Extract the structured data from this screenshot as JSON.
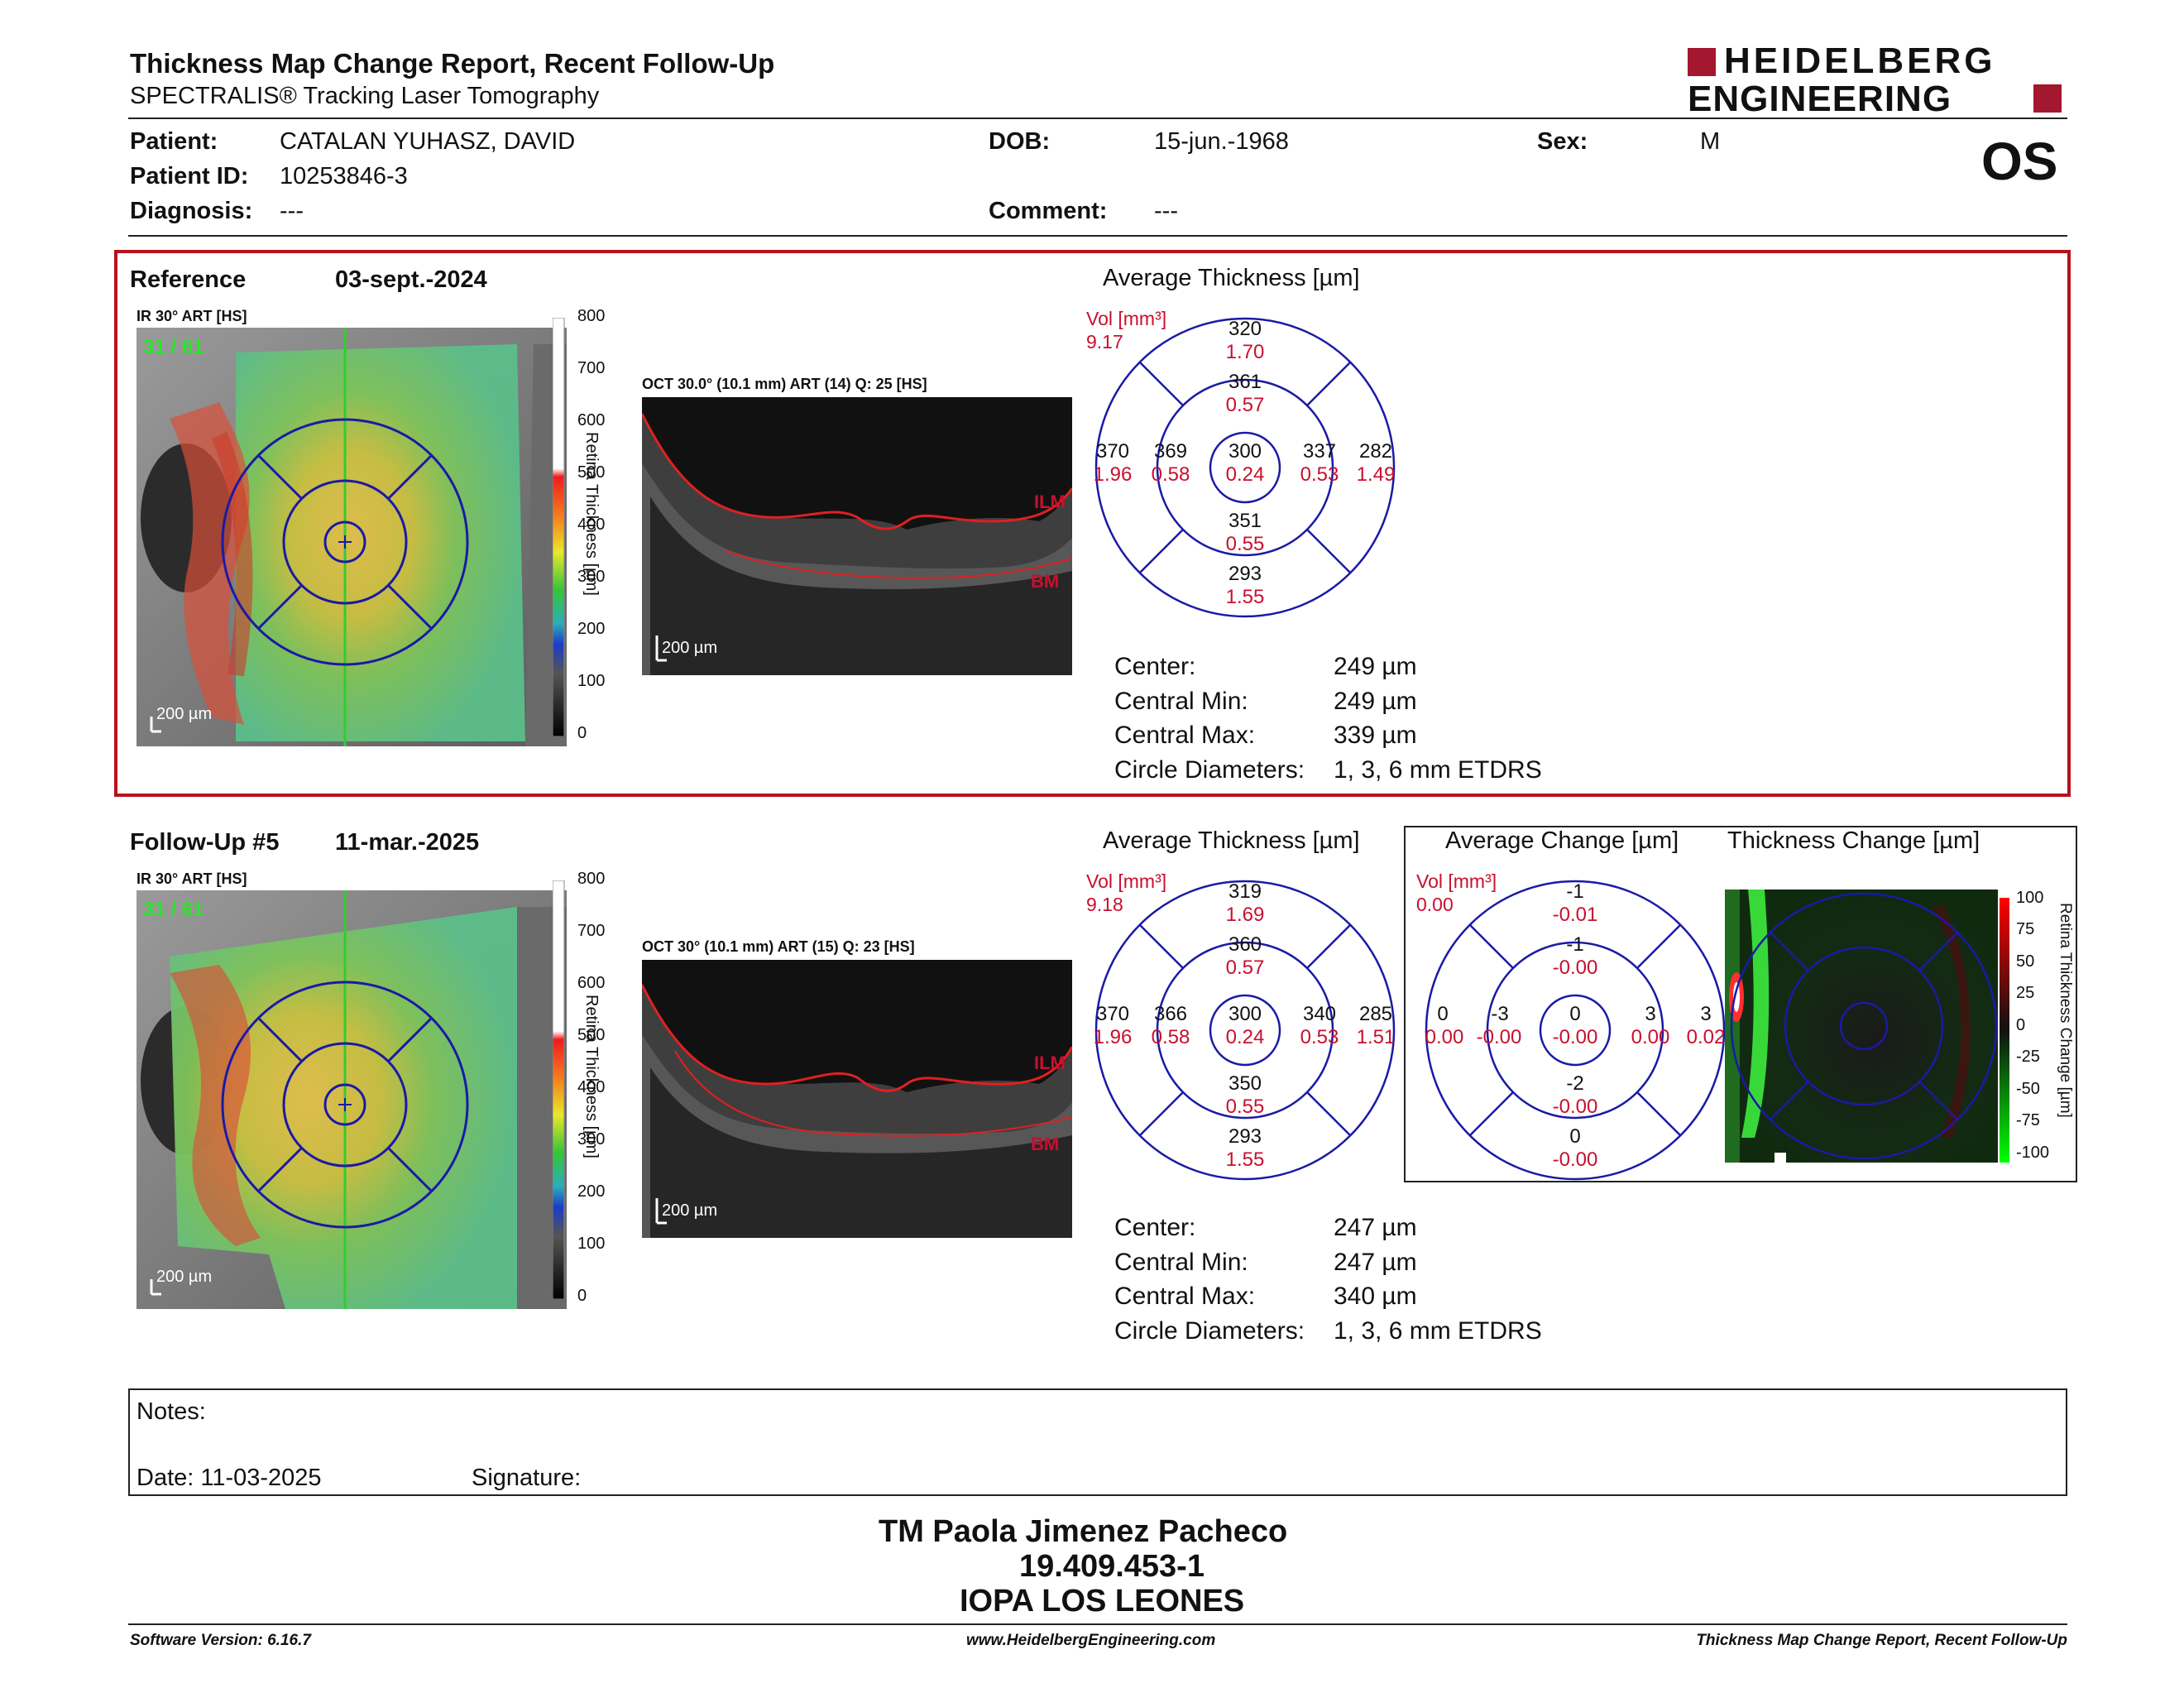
{
  "header": {
    "title": "Thickness Map Change Report, Recent Follow-Up",
    "subtitle": "SPECTRALIS® Tracking Laser Tomography",
    "logo_line1": "HEIDELBERG",
    "logo_line2": "ENGINEERING",
    "eye": "OS"
  },
  "patient": {
    "patient_label": "Patient:",
    "patient_value": "CATALAN YUHASZ, DAVID",
    "id_label": "Patient ID:",
    "id_value": "10253846-3",
    "diagnosis_label": "Diagnosis:",
    "diagnosis_value": "---",
    "dob_label": "DOB:",
    "dob_value": "15-jun.-1968",
    "comment_label": "Comment:",
    "comment_value": "---",
    "sex_label": "Sex:",
    "sex_value": "M"
  },
  "reference": {
    "label": "Reference",
    "date": "03-sept.-2024",
    "ir_label": "IR 30° ART [HS]",
    "frame": "31 / 61",
    "oct_label": "OCT 30.0° (10.1 mm) ART (14) Q: 25 [HS]",
    "scale_bar": "200 µm",
    "ilm": "ILM",
    "bm": "BM",
    "avg_title": "Average Thickness [µm]",
    "vol_label": "Vol [mm³]",
    "vol_value": "9.17",
    "grid": {
      "outer_sup": "320",
      "outer_sup_v": "1.70",
      "inner_sup": "361",
      "inner_sup_v": "0.57",
      "outer_temp": "370",
      "outer_temp_v": "1.96",
      "inner_temp": "369",
      "inner_temp_v": "0.58",
      "center": "300",
      "center_v": "0.24",
      "inner_nas": "337",
      "inner_nas_v": "0.53",
      "outer_nas": "282",
      "outer_nas_v": "1.49",
      "inner_inf": "351",
      "inner_inf_v": "0.55",
      "outer_inf": "293",
      "outer_inf_v": "1.55"
    },
    "stats": {
      "center_label": "Center:",
      "center_value": "249 µm",
      "min_label": "Central Min:",
      "min_value": "249 µm",
      "max_label": "Central Max:",
      "max_value": "339 µm",
      "diam_label": "Circle Diameters:",
      "diam_value": "1, 3, 6 mm ETDRS"
    }
  },
  "followup": {
    "label": "Follow-Up #5",
    "date": "11-mar.-2025",
    "ir_label": "IR 30° ART [HS]",
    "frame": "31 / 61",
    "oct_label": "OCT 30° (10.1 mm) ART (15) Q: 23 [HS]",
    "scale_bar": "200 µm",
    "ilm": "ILM",
    "bm": "BM",
    "avg_title": "Average Thickness [µm]",
    "vol_label": "Vol [mm³]",
    "vol_value": "9.18",
    "grid": {
      "outer_sup": "319",
      "outer_sup_v": "1.69",
      "inner_sup": "360",
      "inner_sup_v": "0.57",
      "outer_temp": "370",
      "outer_temp_v": "1.96",
      "inner_temp": "366",
      "inner_temp_v": "0.58",
      "center": "300",
      "center_v": "0.24",
      "inner_nas": "340",
      "inner_nas_v": "0.53",
      "outer_nas": "285",
      "outer_nas_v": "1.51",
      "inner_inf": "350",
      "inner_inf_v": "0.55",
      "outer_inf": "293",
      "outer_inf_v": "1.55"
    },
    "stats": {
      "center_label": "Center:",
      "center_value": "247 µm",
      "min_label": "Central Min:",
      "min_value": "247 µm",
      "max_label": "Central Max:",
      "max_value": "340 µm",
      "diam_label": "Circle Diameters:",
      "diam_value": "1, 3, 6 mm ETDRS"
    },
    "change_title": "Average Change [µm]",
    "change_vol_label": "Vol [mm³]",
    "change_vol_value": "0.00",
    "change_grid": {
      "outer_sup": "-1",
      "outer_sup_v": "-0.01",
      "inner_sup": "-1",
      "inner_sup_v": "-0.00",
      "outer_temp": "0",
      "outer_temp_v": "0.00",
      "inner_temp": "-3",
      "inner_temp_v": "-0.00",
      "center": "0",
      "center_v": "-0.00",
      "inner_nas": "3",
      "inner_nas_v": "0.00",
      "outer_nas": "3",
      "outer_nas_v": "0.02",
      "inner_inf": "-2",
      "inner_inf_v": "-0.00",
      "outer_inf": "0",
      "outer_inf_v": "-0.00"
    },
    "thick_change_title": "Thickness Change [µm]"
  },
  "thickness_scale": {
    "label": "Retina Thickness [µm]",
    "ticks": [
      "800",
      "700",
      "600",
      "500",
      "400",
      "300",
      "200",
      "100",
      "0"
    ]
  },
  "change_scale": {
    "label": "Retina Thickness Change [µm]",
    "ticks": [
      "100",
      "75",
      "50",
      "25",
      "0",
      "-25",
      "-50",
      "-75",
      "-100"
    ]
  },
  "notes": {
    "notes_label": "Notes:",
    "date_label": "Date: 11-03-2025",
    "signature_label": "Signature:"
  },
  "signer": {
    "name": "TM Paola Jimenez Pacheco",
    "rut": "19.409.453-1",
    "org": "IOPA LOS LEONES"
  },
  "footer": {
    "software": "Software Version: 6.16.7",
    "website": "www.HeidelbergEngineering.com",
    "report": "Thickness Map Change Report, Recent Follow-Up"
  },
  "colors": {
    "accent_red": "#b5121b",
    "grid_blue": "#1a1aa6",
    "value_red": "#c8102e"
  }
}
